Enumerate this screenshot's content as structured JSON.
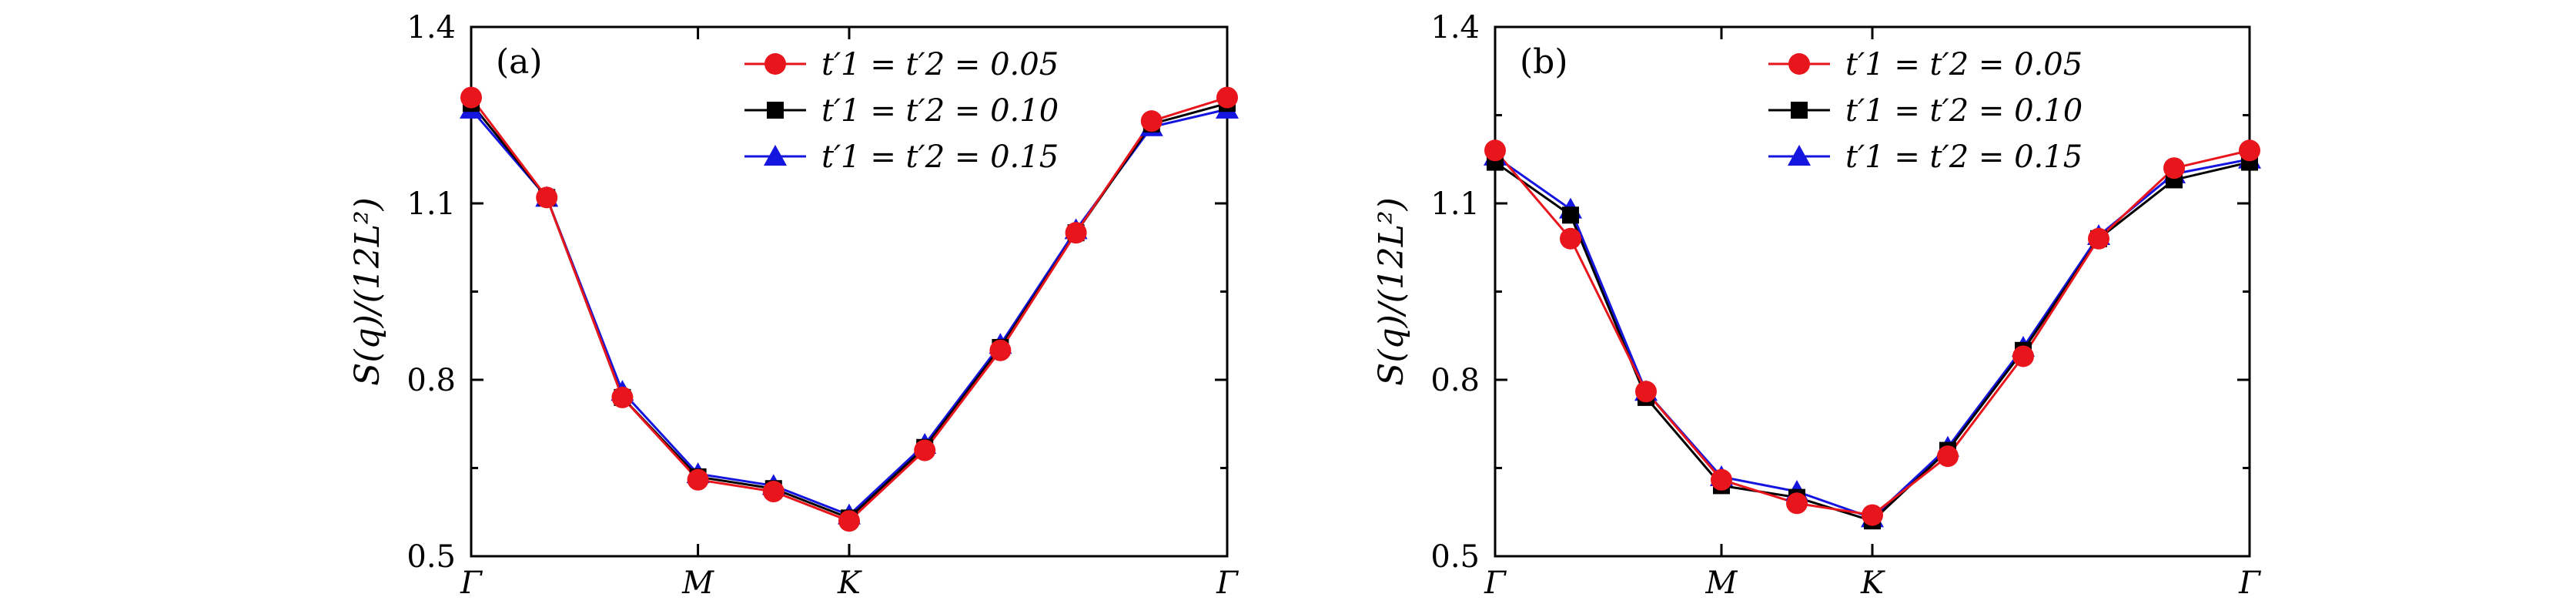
{
  "chart_data": [
    {
      "type": "line",
      "panel_label": "(a)",
      "ylabel": "S(q)/(12L²)",
      "xlabel": "",
      "ylim": [
        0.5,
        1.4
      ],
      "yticks": [
        0.5,
        0.8,
        1.1,
        1.4
      ],
      "ytick_labels": [
        "0.5",
        "0.8",
        "1.1",
        "1.4"
      ],
      "x": [
        0,
        1,
        2,
        3,
        4,
        5,
        6,
        7,
        8,
        9,
        10
      ],
      "xlim": [
        0,
        10
      ],
      "xticks": [
        0,
        3,
        5,
        10
      ],
      "xtick_labels": [
        "Γ",
        "M",
        "K",
        "Γ"
      ],
      "legend_position": "top-center",
      "series": [
        {
          "name": "t′1 = t′2 = 0.05",
          "marker": "circle",
          "color": "#e8161c",
          "values": [
            1.28,
            1.11,
            0.77,
            0.63,
            0.61,
            0.56,
            0.68,
            0.85,
            1.05,
            1.24,
            1.28
          ]
        },
        {
          "name": "t′1 = t′2 = 0.10",
          "marker": "square",
          "color": "#000000",
          "values": [
            1.27,
            1.11,
            0.77,
            0.635,
            0.615,
            0.565,
            0.685,
            0.855,
            1.05,
            1.235,
            1.27
          ]
        },
        {
          "name": "t′1 = t′2 = 0.15",
          "marker": "triangle",
          "color": "#1515e0",
          "values": [
            1.26,
            1.11,
            0.78,
            0.64,
            0.62,
            0.57,
            0.69,
            0.86,
            1.055,
            1.23,
            1.26
          ]
        }
      ]
    },
    {
      "type": "line",
      "panel_label": "(b)",
      "ylabel": "S(q)/(12L²)",
      "xlabel": "",
      "ylim": [
        0.5,
        1.4
      ],
      "yticks": [
        0.5,
        0.8,
        1.1,
        1.4
      ],
      "ytick_labels": [
        "0.5",
        "0.8",
        "1.1",
        "1.4"
      ],
      "x": [
        0,
        1,
        2,
        3,
        4,
        5,
        6,
        7,
        8,
        9,
        10
      ],
      "xlim": [
        0,
        10
      ],
      "xticks": [
        0,
        3,
        5,
        10
      ],
      "xtick_labels": [
        "Γ",
        "M",
        "K",
        "Γ"
      ],
      "legend_position": "top-center",
      "series": [
        {
          "name": "t′1 = t′2 = 0.05",
          "marker": "circle",
          "color": "#e8161c",
          "values": [
            1.19,
            1.04,
            0.78,
            0.63,
            0.59,
            0.57,
            0.67,
            0.84,
            1.04,
            1.16,
            1.19
          ]
        },
        {
          "name": "t′1 = t′2 = 0.10",
          "marker": "square",
          "color": "#000000",
          "values": [
            1.17,
            1.08,
            0.77,
            0.62,
            0.6,
            0.56,
            0.68,
            0.85,
            1.04,
            1.14,
            1.17
          ]
        },
        {
          "name": "t′1 = t′2 = 0.15",
          "marker": "triangle",
          "color": "#1515e0",
          "values": [
            1.18,
            1.09,
            0.78,
            0.635,
            0.61,
            0.565,
            0.685,
            0.855,
            1.045,
            1.15,
            1.175
          ]
        }
      ]
    }
  ]
}
